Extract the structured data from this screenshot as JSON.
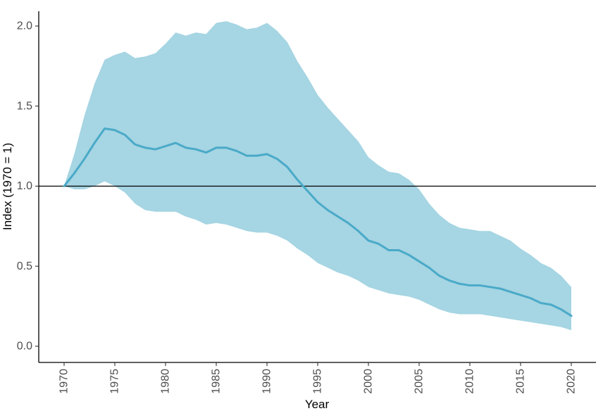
{
  "chart_data": {
    "type": "area",
    "xlabel": "Year",
    "ylabel": "Index (1970 = 1)",
    "xlim": [
      1970,
      2020
    ],
    "ylim": [
      0,
      2.1
    ],
    "x_ticks": [
      1970,
      1975,
      1980,
      1985,
      1990,
      1995,
      2000,
      2005,
      2010,
      2015,
      2020
    ],
    "y_ticks": [
      0.0,
      0.5,
      1.0,
      1.5,
      2.0
    ],
    "y_tick_labels": [
      "0.0",
      "0.5",
      "1.0",
      "1.5",
      "2.0"
    ],
    "reference_line": 1.0,
    "grid": false,
    "colors": {
      "band": "#a6d5e3",
      "line": "#4aaac8",
      "reference": "#000000",
      "axis": "#000000"
    },
    "x": [
      1970,
      1971,
      1972,
      1973,
      1974,
      1975,
      1976,
      1977,
      1978,
      1979,
      1980,
      1981,
      1982,
      1983,
      1984,
      1985,
      1986,
      1987,
      1988,
      1989,
      1990,
      1991,
      1992,
      1993,
      1994,
      1995,
      1996,
      1997,
      1998,
      1999,
      2000,
      2001,
      2002,
      2003,
      2004,
      2005,
      2006,
      2007,
      2008,
      2009,
      2010,
      2011,
      2012,
      2013,
      2014,
      2015,
      2016,
      2017,
      2018,
      2019,
      2020
    ],
    "series": [
      {
        "values": [
          1.0,
          1.08,
          1.17,
          1.27,
          1.36,
          1.35,
          1.32,
          1.26,
          1.24,
          1.23,
          1.25,
          1.27,
          1.24,
          1.23,
          1.21,
          1.24,
          1.24,
          1.22,
          1.19,
          1.19,
          1.2,
          1.17,
          1.12,
          1.04,
          0.97,
          0.9,
          0.85,
          0.81,
          0.77,
          0.72,
          0.66,
          0.64,
          0.6,
          0.6,
          0.57,
          0.53,
          0.49,
          0.44,
          0.41,
          0.39,
          0.38,
          0.38,
          0.37,
          0.36,
          0.34,
          0.32,
          0.3,
          0.27,
          0.26,
          0.23,
          0.19
        ],
        "lower": [
          1.0,
          0.98,
          0.98,
          1.0,
          1.03,
          1.0,
          0.96,
          0.89,
          0.85,
          0.84,
          0.84,
          0.84,
          0.81,
          0.79,
          0.76,
          0.77,
          0.76,
          0.74,
          0.72,
          0.71,
          0.71,
          0.69,
          0.66,
          0.61,
          0.57,
          0.52,
          0.49,
          0.46,
          0.44,
          0.41,
          0.37,
          0.35,
          0.33,
          0.32,
          0.31,
          0.29,
          0.26,
          0.23,
          0.21,
          0.2,
          0.2,
          0.2,
          0.19,
          0.18,
          0.17,
          0.16,
          0.15,
          0.14,
          0.13,
          0.12,
          0.1
        ],
        "upper": [
          1.0,
          1.2,
          1.44,
          1.64,
          1.79,
          1.82,
          1.84,
          1.8,
          1.81,
          1.83,
          1.89,
          1.96,
          1.94,
          1.96,
          1.95,
          2.02,
          2.03,
          2.01,
          1.98,
          1.99,
          2.02,
          1.97,
          1.9,
          1.78,
          1.68,
          1.57,
          1.49,
          1.42,
          1.35,
          1.28,
          1.18,
          1.13,
          1.09,
          1.08,
          1.04,
          0.98,
          0.89,
          0.82,
          0.77,
          0.74,
          0.73,
          0.72,
          0.72,
          0.69,
          0.66,
          0.61,
          0.57,
          0.52,
          0.49,
          0.44,
          0.37
        ]
      }
    ]
  }
}
